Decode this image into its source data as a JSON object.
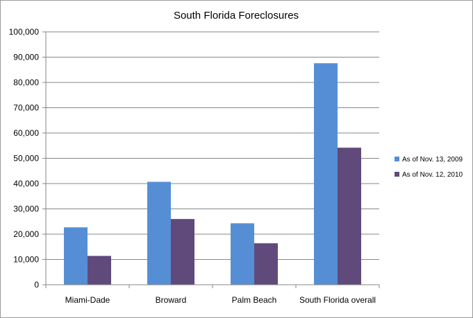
{
  "chart_data": {
    "type": "bar",
    "title": "South Florida Foreclosures",
    "categories": [
      "Miami-Dade",
      "Broward",
      "Palm Beach",
      "South Florida overall"
    ],
    "series": [
      {
        "name": "As of Nov. 13, 2009",
        "values": [
          22700,
          40700,
          24300,
          87600
        ],
        "color": "#558ed5"
      },
      {
        "name": "As of Nov. 12, 2010",
        "values": [
          11400,
          26000,
          16400,
          54200
        ],
        "color": "#604a7b"
      }
    ],
    "ylim": [
      0,
      100000
    ],
    "yticks": [
      "0",
      "10,000",
      "20,000",
      "30,000",
      "40,000",
      "50,000",
      "60,000",
      "70,000",
      "80,000",
      "90,000",
      "100,000"
    ],
    "grid": true,
    "legend_position": "right"
  }
}
